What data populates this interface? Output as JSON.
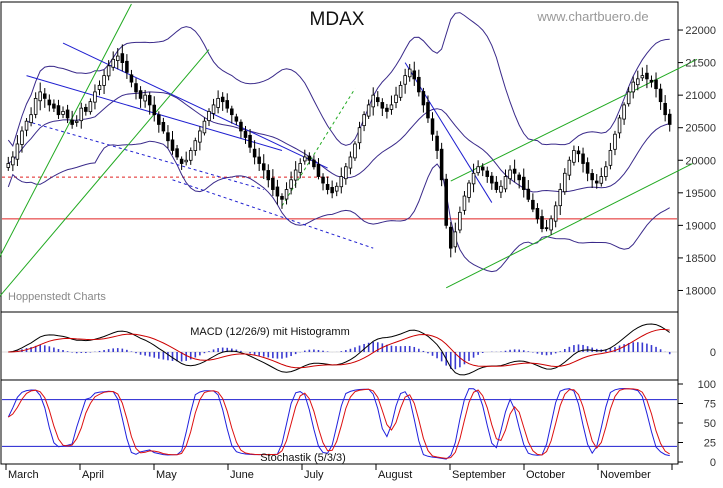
{
  "header": {
    "title": "MDAX",
    "watermark": "www.chartbuero.de",
    "source_credit": "Hoppenstedt Charts"
  },
  "colors": {
    "background": "#ffffff",
    "candle": "#000000",
    "bollinger": "#3a2a8a",
    "trend_blue": "#1f1fd0",
    "trend_green": "#22aa22",
    "support_red": "#e02020",
    "macd_line": "#000000",
    "signal_line": "#cc0000",
    "histogram": "#3a3ad0",
    "stoch_k": "#2020dd",
    "stoch_d": "#dd1010",
    "axis_text": "#333333"
  },
  "chart_data": [
    {
      "type": "candlestick",
      "title": "MDAX",
      "ylim": [
        17700,
        22400
      ],
      "yticks": [
        18000,
        18500,
        19000,
        19500,
        20000,
        20500,
        21000,
        21500,
        22000
      ],
      "x_labels": [
        "March",
        "April",
        "May",
        "June",
        "July",
        "August",
        "September",
        "October",
        "November"
      ],
      "support_level": 19100,
      "dashed_level": 19740,
      "close": [
        19950,
        20050,
        20250,
        20450,
        20600,
        20700,
        20950,
        21050,
        20950,
        20850,
        20800,
        20700,
        20750,
        20650,
        20550,
        20600,
        20800,
        20750,
        20900,
        21050,
        21150,
        21300,
        21450,
        21550,
        21600,
        21500,
        21350,
        21200,
        21050,
        20950,
        21000,
        20850,
        20700,
        20550,
        20450,
        20300,
        20150,
        20050,
        19950,
        20000,
        20150,
        20300,
        20450,
        20600,
        20750,
        20850,
        20950,
        20900,
        20800,
        20700,
        20600,
        20450,
        20350,
        20200,
        20050,
        19950,
        19850,
        19700,
        19550,
        19450,
        19400,
        19550,
        19700,
        19850,
        19950,
        20050,
        20000,
        19900,
        19750,
        19650,
        19550,
        19500,
        19600,
        19750,
        19900,
        20050,
        20250,
        20500,
        20700,
        20850,
        21000,
        20900,
        20800,
        20750,
        20850,
        21000,
        21150,
        21300,
        21400,
        21250,
        21050,
        20850,
        20650,
        20400,
        20150,
        19700,
        19000,
        18650,
        18900,
        19200,
        19450,
        19650,
        19800,
        19900,
        19850,
        19750,
        19650,
        19550,
        19600,
        19750,
        19850,
        19800,
        19700,
        19550,
        19400,
        19250,
        19100,
        18950,
        18950,
        19100,
        19300,
        19550,
        19800,
        20000,
        20150,
        20100,
        19950,
        19800,
        19700,
        19650,
        19750,
        19900,
        20150,
        20400,
        20650,
        20850,
        21050,
        21200,
        21250,
        21300,
        21250,
        21200,
        21100,
        20900,
        20700,
        20550
      ]
    },
    {
      "type": "line",
      "title": "MACD (12/26/9) mit Histogramm",
      "yticks": [
        0
      ],
      "series": []
    },
    {
      "type": "line",
      "title": "Stochastik (5/3/3)",
      "ylim": [
        0,
        100
      ],
      "yticks": [
        0,
        25,
        50,
        75,
        100
      ],
      "levels": [
        80,
        20
      ],
      "series": []
    }
  ]
}
